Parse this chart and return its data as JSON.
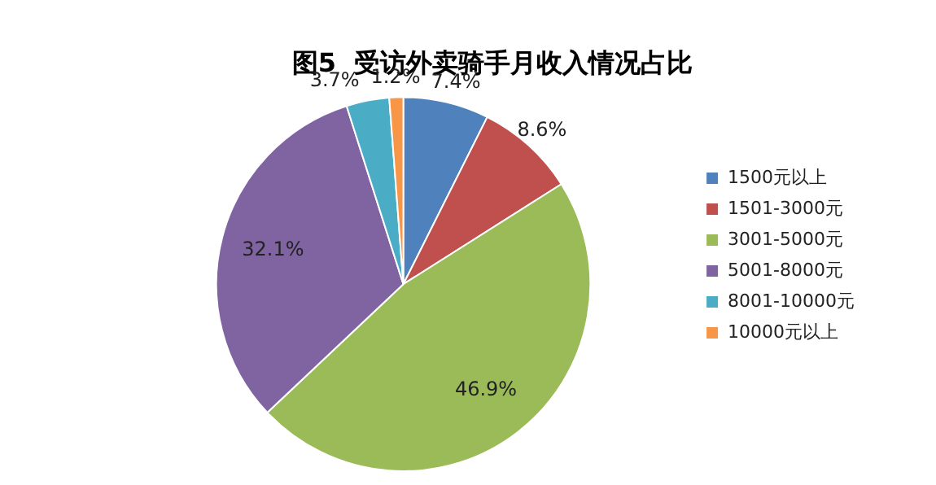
{
  "chart_data": {
    "type": "pie",
    "title": "图5  受访外卖骑手月收入情况占比",
    "categories": [
      "1500元以上",
      "1501-3000元",
      "3001-5000元",
      "5001-8000元",
      "8001-10000元",
      "10000元以上"
    ],
    "values": [
      7.4,
      8.6,
      46.9,
      32.1,
      3.7,
      1.2
    ],
    "value_labels": [
      "7.4%",
      "8.6%",
      "46.9%",
      "32.1%",
      "3.7%",
      "1.2%"
    ],
    "colors": [
      "#4f81bd",
      "#c0504d",
      "#9bbb59",
      "#8064a2",
      "#4bacc6",
      "#f79646"
    ],
    "legend": "right"
  }
}
